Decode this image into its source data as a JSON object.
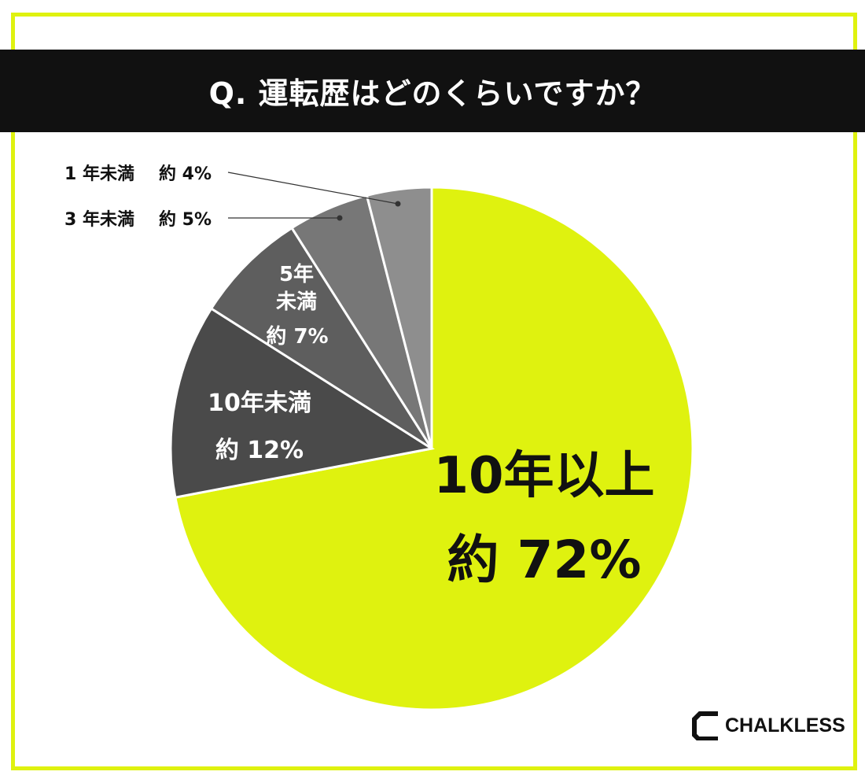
{
  "title": "Q. 運転歴はどのくらいですか？",
  "brand": {
    "name": "CHALKLESS"
  },
  "colors": {
    "accent": "#dff20f",
    "title_bg": "#111111",
    "slice_10plus": "#dff20f",
    "slice_under10": "#4a4a4a",
    "slice_under5": "#5e5e5e",
    "slice_under3": "#777777",
    "slice_under1": "#8e8e8e"
  },
  "chart_data": {
    "type": "pie",
    "slices": [
      {
        "name": "10年以上",
        "value": 72,
        "value_label": "約 72%",
        "color": "#dff20f"
      },
      {
        "name": "10年未満",
        "value": 12,
        "value_label": "約 12%",
        "color": "#4a4a4a"
      },
      {
        "name": "5年未満",
        "value": 7,
        "value_label": "約 7%",
        "color": "#5e5e5e"
      },
      {
        "name": "3 年未満",
        "value": 5,
        "value_label": "約 5%",
        "color": "#777777"
      },
      {
        "name": "1 年未満",
        "value": 4,
        "value_label": "約 4%",
        "color": "#8e8e8e"
      }
    ]
  }
}
